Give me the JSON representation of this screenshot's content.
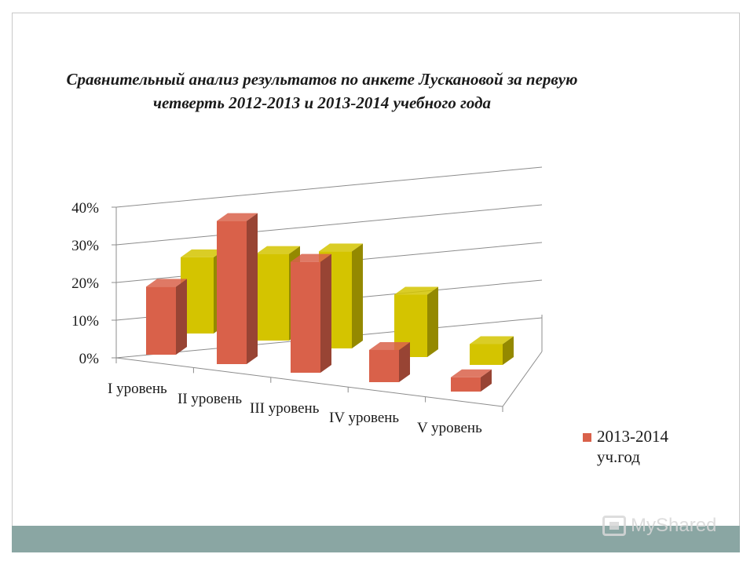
{
  "chart_data": {
    "type": "bar",
    "title": "Сравнительный анализ результатов по анкете Лускановой за первую четверть 2012-2013 и 2013-2014 учебного года",
    "categories": [
      "I уровень",
      "II уровень",
      "III уровень",
      "IV уровень",
      "V уровень"
    ],
    "series": [
      {
        "name": "",
        "color": "#d4c400",
        "values": [
          22,
          25,
          28,
          18,
          6
        ]
      },
      {
        "name": "2013-2014 уч.год",
        "color": "#d9614a",
        "values": [
          19,
          40,
          31,
          9,
          4
        ]
      }
    ],
    "y_ticks": [
      "0%",
      "10%",
      "20%",
      "30%",
      "40%"
    ],
    "ylim": [
      0,
      40
    ],
    "grid": true,
    "three_d": true,
    "legend": "right"
  },
  "watermark": {
    "text": "MyShared"
  }
}
